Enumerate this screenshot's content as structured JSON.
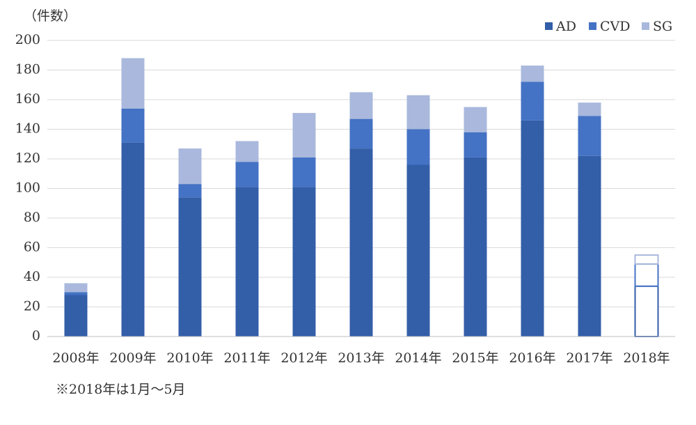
{
  "chart_data": {
    "type": "stacked_bar",
    "y_label": "（件数）",
    "note": "※2018年は1月～5月",
    "categories": [
      "2008年",
      "2009年",
      "2010年",
      "2011年",
      "2012年",
      "2013年",
      "2014年",
      "2015年",
      "2016年",
      "2017年",
      "2018年"
    ],
    "series": [
      {
        "name": "AD",
        "color": "#335ea8",
        "values": [
          28,
          131,
          94,
          101,
          101,
          127,
          116,
          121,
          146,
          122,
          34
        ]
      },
      {
        "name": "CVD",
        "color": "#4472c4",
        "values": [
          2,
          23,
          9,
          17,
          20,
          20,
          24,
          17,
          26,
          27,
          15
        ]
      },
      {
        "name": "SG",
        "color": "#a9b8dc",
        "values": [
          6,
          34,
          24,
          14,
          30,
          18,
          23,
          17,
          11,
          9,
          6
        ]
      }
    ],
    "outlined": [
      false,
      false,
      false,
      false,
      false,
      false,
      false,
      false,
      false,
      false,
      true
    ],
    "ylim": [
      0,
      200
    ],
    "yticks": [
      0,
      20,
      40,
      60,
      80,
      100,
      120,
      140,
      160,
      180,
      200
    ],
    "grid": true,
    "legend": "top-right"
  }
}
